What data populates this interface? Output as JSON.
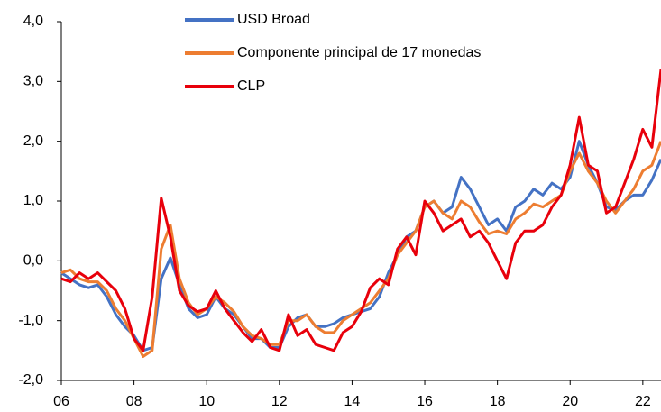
{
  "chart_data": {
    "type": "line",
    "x": [
      2006,
      2006.25,
      2006.5,
      2006.75,
      2007,
      2007.25,
      2007.5,
      2007.75,
      2008,
      2008.25,
      2008.5,
      2008.75,
      2009,
      2009.25,
      2009.5,
      2009.75,
      2010,
      2010.25,
      2010.5,
      2010.75,
      2011,
      2011.25,
      2011.5,
      2011.75,
      2012,
      2012.25,
      2012.5,
      2012.75,
      2013,
      2013.25,
      2013.5,
      2013.75,
      2014,
      2014.25,
      2014.5,
      2014.75,
      2015,
      2015.25,
      2015.5,
      2015.75,
      2016,
      2016.25,
      2016.5,
      2016.75,
      2017,
      2017.25,
      2017.5,
      2017.75,
      2018,
      2018.25,
      2018.5,
      2018.75,
      2019,
      2019.25,
      2019.5,
      2019.75,
      2020,
      2020.25,
      2020.5,
      2020.75,
      2021,
      2021.25,
      2021.5,
      2021.75,
      2022,
      2022.25,
      2022.5
    ],
    "series": [
      {
        "name": "USD Broad",
        "color": "#4472c4",
        "values": [
          -0.2,
          -0.3,
          -0.4,
          -0.45,
          -0.4,
          -0.6,
          -0.9,
          -1.1,
          -1.25,
          -1.5,
          -1.45,
          -0.3,
          0.05,
          -0.4,
          -0.8,
          -0.95,
          -0.9,
          -0.6,
          -0.8,
          -0.9,
          -1.1,
          -1.3,
          -1.3,
          -1.45,
          -1.45,
          -1.1,
          -0.95,
          -0.9,
          -1.1,
          -1.1,
          -1.05,
          -0.95,
          -0.9,
          -0.85,
          -0.8,
          -0.6,
          -0.2,
          0.1,
          0.4,
          0.5,
          0.9,
          1.0,
          0.8,
          0.9,
          1.4,
          1.2,
          0.9,
          0.6,
          0.7,
          0.5,
          0.9,
          1.0,
          1.2,
          1.1,
          1.3,
          1.2,
          1.4,
          2.0,
          1.6,
          1.3,
          0.9,
          0.85,
          1.0,
          1.1,
          1.1,
          1.35,
          1.7
        ]
      },
      {
        "name": "Componente principal de 17 monedas",
        "color": "#ed7d31",
        "values": [
          -0.2,
          -0.15,
          -0.3,
          -0.35,
          -0.35,
          -0.5,
          -0.8,
          -1.0,
          -1.3,
          -1.6,
          -1.5,
          0.2,
          0.6,
          -0.3,
          -0.7,
          -0.9,
          -0.8,
          -0.6,
          -0.7,
          -0.85,
          -1.1,
          -1.25,
          -1.3,
          -1.4,
          -1.4,
          -1.0,
          -1.0,
          -0.9,
          -1.1,
          -1.2,
          -1.2,
          -1.0,
          -0.9,
          -0.8,
          -0.7,
          -0.5,
          -0.3,
          0.1,
          0.3,
          0.5,
          0.9,
          1.0,
          0.8,
          0.7,
          1.0,
          0.9,
          0.65,
          0.45,
          0.5,
          0.45,
          0.7,
          0.8,
          0.95,
          0.9,
          1.0,
          1.1,
          1.5,
          1.8,
          1.5,
          1.3,
          1.0,
          0.8,
          1.0,
          1.2,
          1.5,
          1.6,
          2.0
        ]
      },
      {
        "name": "CLP",
        "color": "#e8000b",
        "values": [
          -0.3,
          -0.35,
          -0.2,
          -0.3,
          -0.2,
          -0.35,
          -0.5,
          -0.8,
          -1.3,
          -1.5,
          -0.6,
          1.05,
          0.4,
          -0.5,
          -0.75,
          -0.85,
          -0.8,
          -0.5,
          -0.8,
          -1.0,
          -1.2,
          -1.35,
          -1.15,
          -1.45,
          -1.5,
          -0.9,
          -1.25,
          -1.15,
          -1.4,
          -1.45,
          -1.5,
          -1.2,
          -1.1,
          -0.85,
          -0.45,
          -0.3,
          -0.4,
          0.2,
          0.4,
          0.1,
          1.0,
          0.8,
          0.5,
          0.6,
          0.7,
          0.4,
          0.5,
          0.3,
          0.0,
          -0.3,
          0.3,
          0.5,
          0.5,
          0.6,
          0.9,
          1.1,
          1.6,
          2.4,
          1.6,
          1.5,
          0.8,
          0.9,
          1.3,
          1.7,
          2.2,
          1.9,
          3.2
        ]
      }
    ],
    "xlim": [
      2006,
      2022.5
    ],
    "xticks": [
      {
        "value": 2006,
        "label": "06"
      },
      {
        "value": 2008,
        "label": "08"
      },
      {
        "value": 2010,
        "label": "10"
      },
      {
        "value": 2012,
        "label": "12"
      },
      {
        "value": 2014,
        "label": "14"
      },
      {
        "value": 2016,
        "label": "16"
      },
      {
        "value": 2018,
        "label": "18"
      },
      {
        "value": 2020,
        "label": "20"
      },
      {
        "value": 2022,
        "label": "22"
      }
    ],
    "ylim": [
      -2,
      4
    ],
    "yticks": [
      {
        "value": -2,
        "label": "-2,0"
      },
      {
        "value": -1,
        "label": "-1,0"
      },
      {
        "value": 0,
        "label": "0,0"
      },
      {
        "value": 1,
        "label": "1,0"
      },
      {
        "value": 2,
        "label": "2,0"
      },
      {
        "value": 3,
        "label": "3,0"
      },
      {
        "value": 4,
        "label": "4,0"
      }
    ],
    "grid": false,
    "legend": "top"
  }
}
